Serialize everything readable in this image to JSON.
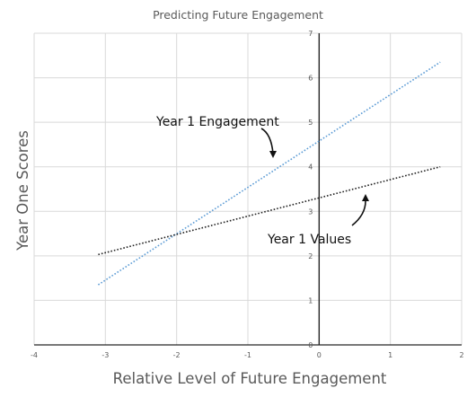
{
  "chart_data": {
    "type": "line",
    "title": "Predicting Future Engagement",
    "xlabel": "Relative Level of Future Engagement",
    "ylabel": "Year One Scores",
    "xlim": [
      -4,
      2
    ],
    "ylim": [
      0,
      7
    ],
    "x_ticks": [
      "-4",
      "-3",
      "-2",
      "-1",
      "0",
      "1",
      "2"
    ],
    "y_ticks": [
      "0",
      "1",
      "2",
      "3",
      "4",
      "5",
      "6",
      "7"
    ],
    "grid": "vertical and horizontal major gridlines",
    "legend": "none",
    "series": [
      {
        "name": "Year 1 Engagement",
        "color": "#5b9bd5",
        "style": "dotted",
        "x": [
          -3.1,
          1.7
        ],
        "y": [
          1.35,
          6.35
        ]
      },
      {
        "name": "Year 1 Values",
        "color": "#222222",
        "style": "dotted",
        "x": [
          -3.1,
          1.7
        ],
        "y": [
          2.03,
          4.0
        ]
      }
    ],
    "annotations": [
      {
        "text": "Year 1 Engagement",
        "arrow_to_series": "Year 1 Engagement"
      },
      {
        "text": "Year 1 Values",
        "arrow_to_series": "Year 1 Values"
      }
    ]
  }
}
